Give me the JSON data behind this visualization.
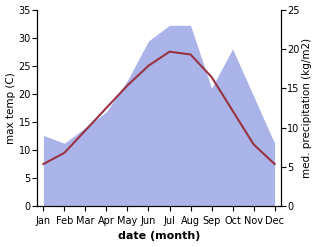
{
  "months": [
    "Jan",
    "Feb",
    "Mar",
    "Apr",
    "May",
    "Jun",
    "Jul",
    "Aug",
    "Sep",
    "Oct",
    "Nov",
    "Dec"
  ],
  "temp": [
    7.5,
    9.5,
    13.5,
    17.5,
    21.5,
    25.0,
    27.5,
    27.0,
    23.0,
    17.0,
    11.0,
    7.5
  ],
  "precip_right": [
    9.0,
    8.0,
    10.0,
    12.0,
    16.0,
    21.0,
    23.0,
    23.0,
    15.0,
    20.0,
    14.0,
    8.0
  ],
  "temp_color": "#993344",
  "precip_color": "#aab4e8",
  "temp_ylim": [
    0,
    35
  ],
  "precip_ylim": [
    0,
    25
  ],
  "temp_yticks": [
    0,
    5,
    10,
    15,
    20,
    25,
    30,
    35
  ],
  "precip_yticks": [
    0,
    5,
    10,
    15,
    20,
    25
  ],
  "xlabel": "date (month)",
  "ylabel_left": "max temp (C)",
  "ylabel_right": "med. precipitation (kg/m2)",
  "axis_fontsize": 7.5,
  "tick_fontsize": 7,
  "label_fontsize": 8,
  "bg_color": "#ffffff"
}
